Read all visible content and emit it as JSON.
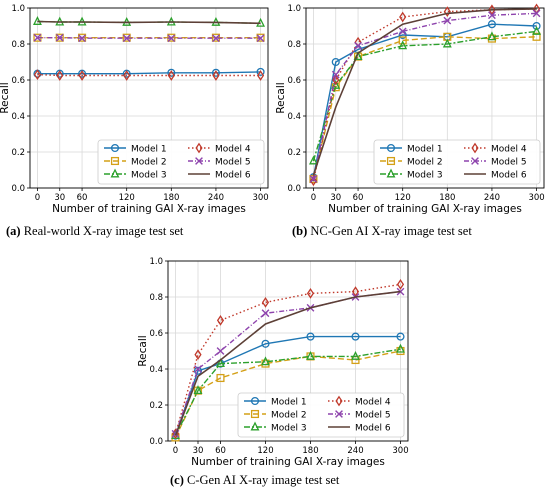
{
  "colors": {
    "Model 1": "#1f77b4",
    "Model 2": "#d4a017",
    "Model 3": "#2ca02c",
    "Model 4": "#c0392b",
    "Model 5": "#8e44ad",
    "Model 6": "#5d4037"
  },
  "captions": [
    {
      "letter": "(a)",
      "text": "Real-world X-ray image test set"
    },
    {
      "letter": "(b)",
      "text": "NC-Gen AI X-ray image test set"
    },
    {
      "letter": "(c)",
      "text": "C-Gen AI X-ray image test set"
    }
  ],
  "chart_data": [
    {
      "type": "line",
      "title": "",
      "xlabel": "Number of training GAI X-ray images",
      "ylabel": "Recall",
      "x": [
        0,
        30,
        60,
        120,
        180,
        240,
        300
      ],
      "xlim": [
        -10,
        310
      ],
      "ylim": [
        0.0,
        1.0
      ],
      "yticks": [
        "0.0",
        "0.2",
        "0.4",
        "0.6",
        "0.8",
        "1.0"
      ],
      "grid": true,
      "legend": "lower-right",
      "series": [
        {
          "name": "Model 1",
          "values": [
            0.635,
            0.635,
            0.635,
            0.635,
            0.64,
            0.64,
            0.645
          ]
        },
        {
          "name": "Model 2",
          "values": [
            0.835,
            0.835,
            0.835,
            0.835,
            0.835,
            0.835,
            0.835
          ]
        },
        {
          "name": "Model 3",
          "values": [
            0.925,
            0.922,
            0.922,
            0.92,
            0.922,
            0.92,
            0.915
          ]
        },
        {
          "name": "Model 4",
          "values": [
            0.63,
            0.625,
            0.625,
            0.625,
            0.625,
            0.625,
            0.625
          ]
        },
        {
          "name": "Model 5",
          "values": [
            0.835,
            0.835,
            0.832,
            0.832,
            0.832,
            0.832,
            0.832
          ]
        },
        {
          "name": "Model 6",
          "values": [
            0.925,
            0.922,
            0.922,
            0.92,
            0.922,
            0.92,
            0.915
          ]
        }
      ]
    },
    {
      "type": "line",
      "title": "",
      "xlabel": "Number of training GAI X-ray images",
      "ylabel": "Recall",
      "x": [
        0,
        30,
        60,
        120,
        180,
        240,
        300
      ],
      "xlim": [
        -10,
        310
      ],
      "ylim": [
        0.0,
        1.0
      ],
      "yticks": [
        "0.0",
        "0.2",
        "0.4",
        "0.6",
        "0.8",
        "1.0"
      ],
      "grid": true,
      "legend": "lower-right",
      "series": [
        {
          "name": "Model 1",
          "values": [
            0.06,
            0.7,
            0.77,
            0.85,
            0.84,
            0.91,
            0.9
          ]
        },
        {
          "name": "Model 2",
          "values": [
            0.05,
            0.56,
            0.73,
            0.82,
            0.84,
            0.83,
            0.84
          ]
        },
        {
          "name": "Model 3",
          "values": [
            0.15,
            0.57,
            0.73,
            0.79,
            0.8,
            0.84,
            0.87
          ]
        },
        {
          "name": "Model 4",
          "values": [
            0.04,
            0.6,
            0.81,
            0.95,
            0.98,
            0.99,
            0.995
          ]
        },
        {
          "name": "Model 5",
          "values": [
            0.05,
            0.63,
            0.79,
            0.87,
            0.93,
            0.96,
            0.97
          ]
        },
        {
          "name": "Model 6",
          "values": [
            0.07,
            0.45,
            0.75,
            0.91,
            0.97,
            0.99,
            0.995
          ]
        }
      ]
    },
    {
      "type": "line",
      "title": "",
      "xlabel": "Number of training GAI X-ray images",
      "ylabel": "Recall",
      "x": [
        0,
        30,
        60,
        120,
        180,
        240,
        300
      ],
      "xlim": [
        -10,
        310
      ],
      "ylim": [
        0.0,
        1.0
      ],
      "yticks": [
        "0.0",
        "0.2",
        "0.4",
        "0.6",
        "0.8",
        "1.0"
      ],
      "grid": true,
      "legend": "lower-right",
      "series": [
        {
          "name": "Model 1",
          "values": [
            0.03,
            0.39,
            0.43,
            0.54,
            0.58,
            0.58,
            0.58
          ]
        },
        {
          "name": "Model 2",
          "values": [
            0.02,
            0.28,
            0.35,
            0.43,
            0.47,
            0.45,
            0.5
          ]
        },
        {
          "name": "Model 3",
          "values": [
            0.03,
            0.28,
            0.43,
            0.44,
            0.47,
            0.47,
            0.51
          ]
        },
        {
          "name": "Model 4",
          "values": [
            0.04,
            0.48,
            0.67,
            0.77,
            0.82,
            0.83,
            0.87
          ]
        },
        {
          "name": "Model 5",
          "values": [
            0.04,
            0.4,
            0.5,
            0.71,
            0.74,
            0.8,
            0.83
          ]
        },
        {
          "name": "Model 6",
          "values": [
            0.03,
            0.36,
            0.45,
            0.65,
            0.74,
            0.8,
            0.83
          ]
        }
      ]
    }
  ]
}
